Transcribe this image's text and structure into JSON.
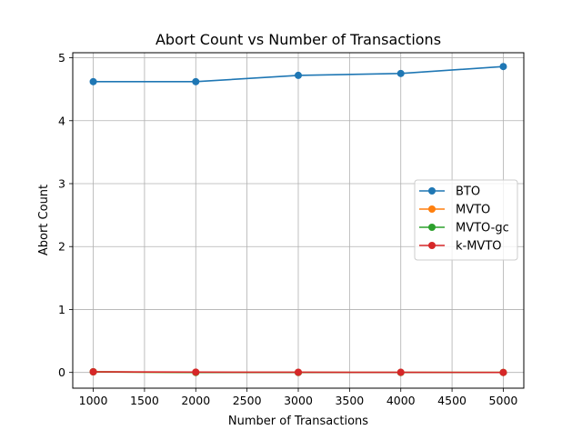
{
  "chart_data": {
    "type": "line",
    "title": "Abort Count vs Number of Transactions",
    "xlabel": "Number of Transactions",
    "ylabel": "Abort Count",
    "x": [
      1000,
      2000,
      3000,
      4000,
      5000
    ],
    "xlim": [
      800,
      5200
    ],
    "ylim": [
      -0.25,
      5.08
    ],
    "xticks": [
      1000,
      1500,
      2000,
      2500,
      3000,
      3500,
      4000,
      4500,
      5000
    ],
    "yticks": [
      0,
      1,
      2,
      3,
      4,
      5
    ],
    "grid": true,
    "legend_position": "center-right",
    "series": [
      {
        "name": "BTO",
        "color": "#1f77b4",
        "values": [
          4.62,
          4.62,
          4.72,
          4.75,
          4.86
        ]
      },
      {
        "name": "MVTO",
        "color": "#ff7f0e",
        "values": [
          0.01,
          0.0,
          0.0,
          0.0,
          0.0
        ]
      },
      {
        "name": "MVTO-gc",
        "color": "#2ca02c",
        "values": [
          0.01,
          0.0,
          0.0,
          0.0,
          0.0
        ]
      },
      {
        "name": "k-MVTO",
        "color": "#d62728",
        "values": [
          0.01,
          0.005,
          0.003,
          0.002,
          0.0
        ]
      }
    ]
  }
}
